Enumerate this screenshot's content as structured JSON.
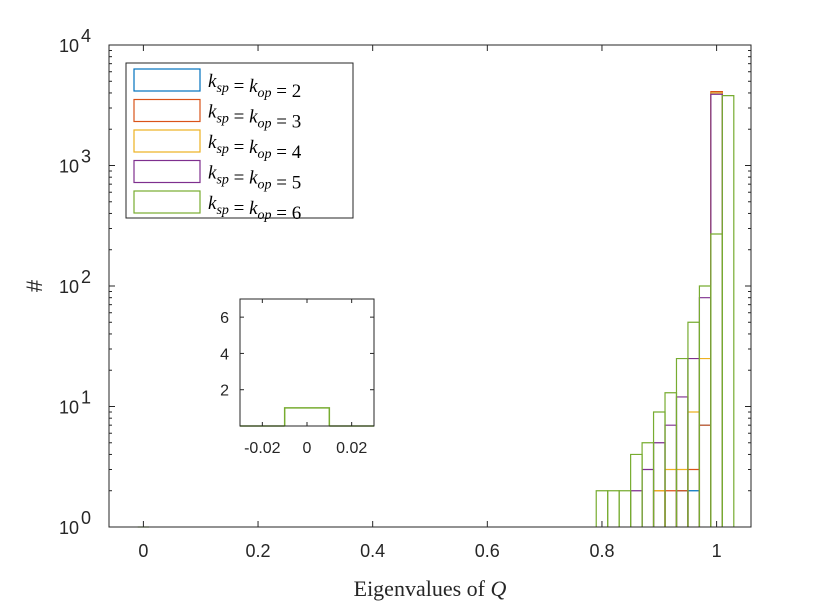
{
  "chart_data": [
    {
      "type": "histogram",
      "role": "main",
      "xlabel_prefix": "Eigenvalues of ",
      "xlabel_var": "Q",
      "ylabel": "#",
      "yscale": "log",
      "xlim": [
        -0.06,
        1.06
      ],
      "ylim": [
        1,
        10000
      ],
      "x_ticks": [
        0,
        0.2,
        0.4,
        0.6,
        0.8,
        1
      ],
      "x_tick_labels": [
        "0",
        "0.2",
        "0.4",
        "0.6",
        "0.8",
        "1"
      ],
      "y_ticks": [
        1,
        10,
        100,
        1000,
        10000
      ],
      "y_tick_labels": [
        {
          "base": "10",
          "exp": "0"
        },
        {
          "base": "10",
          "exp": "1"
        },
        {
          "base": "10",
          "exp": "2"
        },
        {
          "base": "10",
          "exp": "3"
        },
        {
          "base": "10",
          "exp": "4"
        }
      ],
      "bin_width": 0.02,
      "legend_position": "top-left",
      "series": [
        {
          "name": "k_sp = k_op = 2",
          "sub": "2",
          "color": "#0072BD",
          "bins": [
            [
              0.93,
              2
            ],
            [
              0.95,
              2
            ],
            [
              0.97,
              7
            ],
            [
              0.99,
              4000
            ]
          ]
        },
        {
          "name": "k_sp = k_op = 3",
          "sub": "3",
          "color": "#D95319",
          "bins": [
            [
              0.89,
              2
            ],
            [
              0.91,
              2
            ],
            [
              0.93,
              2
            ],
            [
              0.95,
              3
            ],
            [
              0.97,
              7
            ],
            [
              0.99,
              4100
            ]
          ]
        },
        {
          "name": "k_sp = k_op = 4",
          "sub": "4",
          "color": "#EDB120",
          "bins": [
            [
              0.89,
              2
            ],
            [
              0.91,
              3
            ],
            [
              0.93,
              3
            ],
            [
              0.95,
              9
            ],
            [
              0.97,
              25
            ],
            [
              0.99,
              4000
            ]
          ]
        },
        {
          "name": "k_sp = k_op = 5",
          "sub": "5",
          "color": "#7E2F8E",
          "bins": [
            [
              0.85,
              2
            ],
            [
              0.87,
              3
            ],
            [
              0.89,
              5
            ],
            [
              0.91,
              7
            ],
            [
              0.93,
              12
            ],
            [
              0.95,
              25
            ],
            [
              0.97,
              80
            ],
            [
              0.99,
              3900
            ]
          ]
        },
        {
          "name": "k_sp = k_op = 6",
          "sub": "6",
          "color": "#77AC30",
          "bins": [
            [
              -0.01,
              1
            ],
            [
              0.79,
              2
            ],
            [
              0.81,
              2
            ],
            [
              0.83,
              2
            ],
            [
              0.85,
              4
            ],
            [
              0.87,
              5
            ],
            [
              0.89,
              9
            ],
            [
              0.91,
              13
            ],
            [
              0.93,
              25
            ],
            [
              0.95,
              50
            ],
            [
              0.97,
              100
            ],
            [
              0.99,
              270
            ],
            [
              1.01,
              3800
            ]
          ]
        }
      ]
    },
    {
      "type": "histogram",
      "role": "inset",
      "xlim": [
        -0.03,
        0.03
      ],
      "ylim": [
        0,
        7
      ],
      "x_ticks": [
        -0.02,
        0,
        0.02
      ],
      "x_tick_labels": [
        "-0.02",
        "0",
        "0.02"
      ],
      "y_ticks": [
        2,
        4,
        6
      ],
      "y_tick_labels": [
        "2",
        "4",
        "6"
      ],
      "series": [
        {
          "name": "k_sp = k_op = 6",
          "color": "#77AC30",
          "bins": [
            [
              -0.03,
              0
            ],
            [
              -0.01,
              1
            ],
            [
              0.01,
              0
            ]
          ]
        }
      ]
    }
  ]
}
